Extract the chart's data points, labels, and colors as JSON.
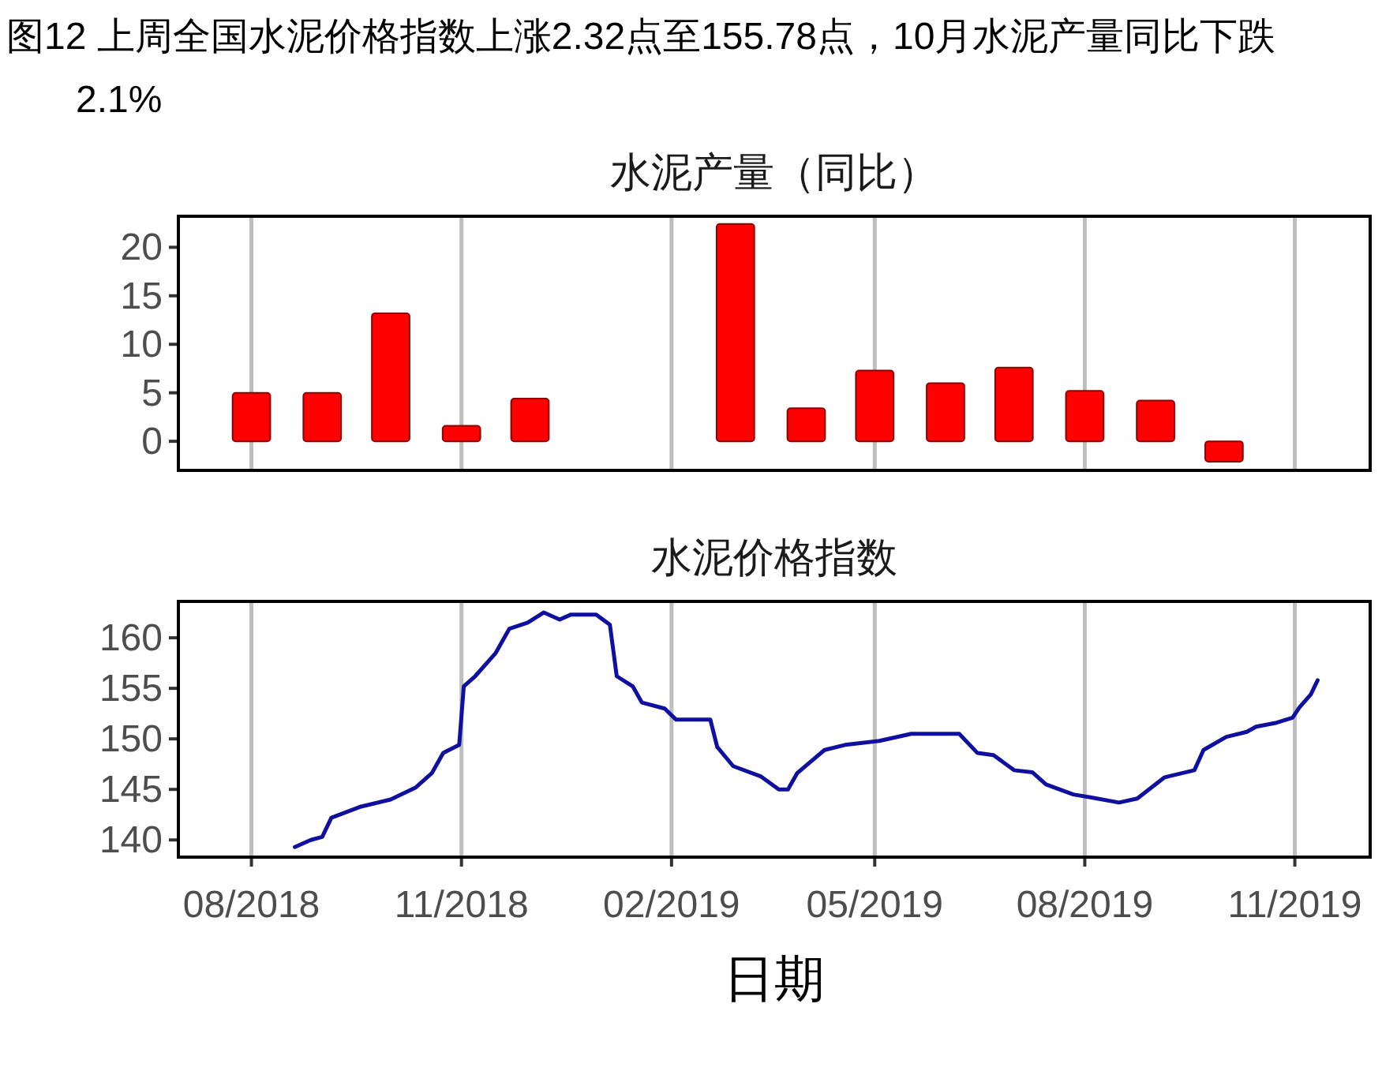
{
  "chart_data": [
    {
      "type": "bar",
      "title": "图12 上周全国水泥价格指数上涨2.32点至155.78点，10月水泥产量同比下跌2.1%",
      "subtitle": "水泥产量（同比）",
      "x": [
        "2018-08-01",
        "2018-09-01",
        "2018-10-01",
        "2018-11-01",
        "2018-12-01",
        "2019-03-01",
        "2019-04-01",
        "2019-05-01",
        "2019-06-01",
        "2019-07-01",
        "2019-08-01",
        "2019-09-01",
        "2019-10-01"
      ],
      "values": [
        5.0,
        5.0,
        13.2,
        1.6,
        4.4,
        22.4,
        3.4,
        7.3,
        6.0,
        7.6,
        5.2,
        4.2,
        -2.1
      ],
      "color": "#ff0000",
      "xlim": [
        "2018-06-30",
        "2019-12-04"
      ],
      "xticks": [
        {
          "value": "2018-08-01",
          "label": null
        },
        {
          "value": "2018-11-01",
          "label": null
        },
        {
          "value": "2019-02-01",
          "label": null
        },
        {
          "value": "2019-05-01",
          "label": null
        },
        {
          "value": "2019-08-01",
          "label": null
        },
        {
          "value": "2019-11-01",
          "label": null
        }
      ],
      "ylim": [
        -3,
        23.2
      ],
      "yticks": [
        0,
        5,
        10,
        15,
        20
      ],
      "grid": "x",
      "tick_labels": "y"
    },
    {
      "type": "line",
      "title": "水泥价格指数",
      "xlabel": "日期",
      "x": [
        "2018-08-20",
        "2018-08-27",
        "2018-09-01",
        "2018-09-05",
        "2018-09-18",
        "2018-10-01",
        "2018-10-12",
        "2018-10-19",
        "2018-10-24",
        "2018-10-31",
        "2018-11-02",
        "2018-11-07",
        "2018-11-16",
        "2018-11-22",
        "2018-11-30",
        "2018-12-07",
        "2018-12-14",
        "2018-12-19",
        "2018-12-30",
        "2019-01-05",
        "2019-01-08",
        "2019-01-15",
        "2019-01-19",
        "2019-01-29",
        "2019-02-03",
        "2019-02-18",
        "2019-02-21",
        "2019-02-28",
        "2019-03-12",
        "2019-03-20",
        "2019-03-24",
        "2019-03-28",
        "2019-04-09",
        "2019-04-18",
        "2019-05-03",
        "2019-05-17",
        "2019-06-07",
        "2019-06-15",
        "2019-06-22",
        "2019-07-01",
        "2019-07-09",
        "2019-07-15",
        "2019-07-27",
        "2019-08-04",
        "2019-08-16",
        "2019-08-24",
        "2019-09-05",
        "2019-09-18",
        "2019-09-22",
        "2019-10-02",
        "2019-10-11",
        "2019-10-15",
        "2019-10-24",
        "2019-10-31",
        "2019-11-03",
        "2019-11-08",
        "2019-11-11"
      ],
      "values": [
        139.3,
        140.0,
        140.3,
        142.2,
        143.3,
        144.0,
        145.2,
        146.6,
        148.6,
        149.4,
        155.2,
        156.2,
        158.5,
        160.9,
        161.5,
        162.5,
        161.8,
        162.3,
        162.3,
        161.3,
        156.2,
        155.2,
        153.6,
        153.0,
        151.9,
        151.9,
        149.2,
        147.3,
        146.3,
        145.0,
        145.0,
        146.6,
        148.9,
        149.4,
        149.8,
        150.5,
        150.5,
        148.6,
        148.4,
        146.9,
        146.7,
        145.5,
        144.5,
        144.2,
        143.7,
        144.1,
        146.2,
        146.9,
        148.9,
        150.2,
        150.7,
        151.2,
        151.6,
        152.1,
        153.1,
        154.4,
        155.8
      ],
      "color": "#1010a0",
      "xlim": [
        "2018-06-30",
        "2019-12-04"
      ],
      "xticks": [
        {
          "value": "2018-08-01",
          "label": "08/2018"
        },
        {
          "value": "2018-11-01",
          "label": "11/2018"
        },
        {
          "value": "2019-02-01",
          "label": "02/2019"
        },
        {
          "value": "2019-05-01",
          "label": "05/2019"
        },
        {
          "value": "2019-08-01",
          "label": "08/2019"
        },
        {
          "value": "2019-11-01",
          "label": "11/2019"
        }
      ],
      "ylim": [
        138.3,
        163.6
      ],
      "yticks": [
        140,
        145,
        150,
        155,
        160
      ],
      "grid": "x"
    }
  ]
}
